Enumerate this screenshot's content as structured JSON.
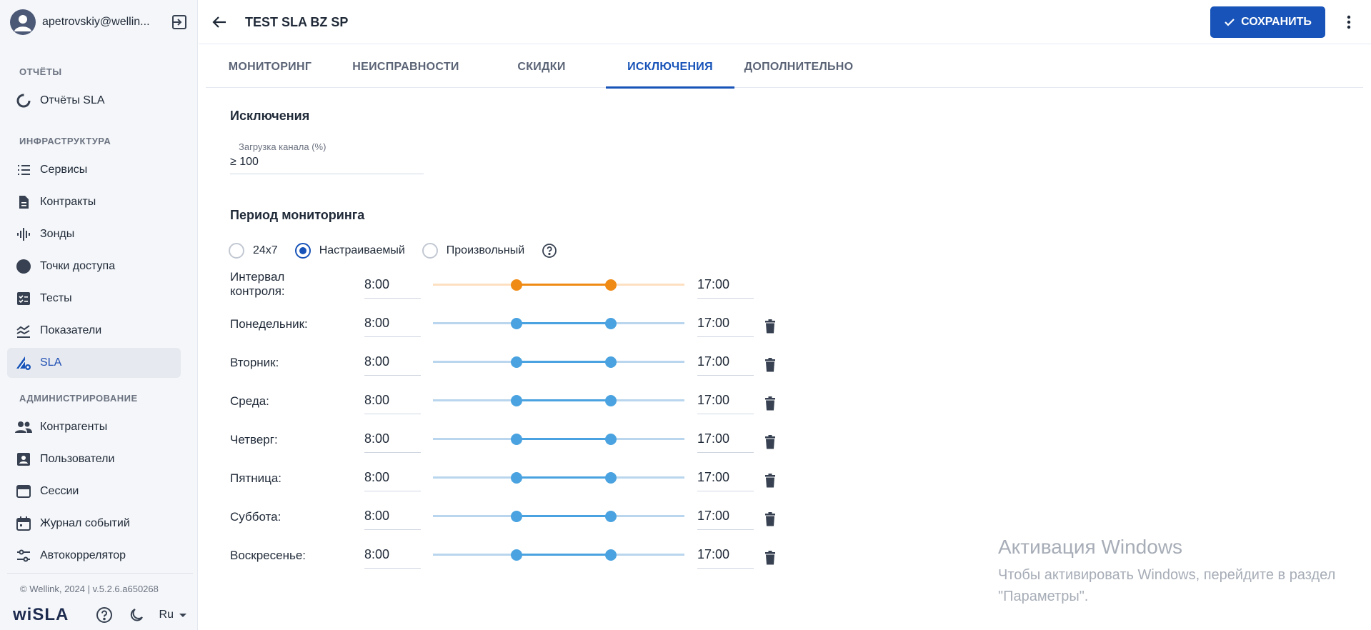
{
  "sidebar": {
    "user": "apetrovskiy@wellin...",
    "sections": [
      {
        "title": "ОТЧЁТЫ",
        "items": [
          {
            "label": "Отчёты SLA",
            "icon": "donut-icon"
          }
        ]
      },
      {
        "title": "ИНФРАСТРУКТУРА",
        "items": [
          {
            "label": "Сервисы",
            "icon": "list-icon"
          },
          {
            "label": "Контракты",
            "icon": "document-icon"
          },
          {
            "label": "Зонды",
            "icon": "waveform-icon"
          },
          {
            "label": "Точки доступа",
            "icon": "circle-icon"
          },
          {
            "label": "Тесты",
            "icon": "checklist-icon"
          },
          {
            "label": "Показатели",
            "icon": "chart-lines-icon"
          },
          {
            "label": "SLA",
            "icon": "sla-gear-icon",
            "active": true
          }
        ]
      },
      {
        "title": "АДМИНИСТРИРОВАНИЕ",
        "items": [
          {
            "label": "Контрагенты",
            "icon": "people-icon"
          },
          {
            "label": "Пользователи",
            "icon": "user-card-icon"
          },
          {
            "label": "Сессии",
            "icon": "window-icon"
          },
          {
            "label": "Журнал событий",
            "icon": "calendar-icon"
          },
          {
            "label": "Автокоррелятор",
            "icon": "sliders-icon"
          }
        ]
      }
    ],
    "copyright": "© Wellink, 2024 | v.5.2.6.a650268",
    "logo": "wiSLA",
    "lang": "Ru"
  },
  "header": {
    "title": "TEST SLA BZ SP",
    "save_label": "СОХРАНИТЬ"
  },
  "tabs": [
    {
      "label": "МОНИТОРИНГ",
      "active": false
    },
    {
      "label": "НЕИСПРАВНОСТИ",
      "active": false
    },
    {
      "label": "СКИДКИ",
      "active": false
    },
    {
      "label": "ИСКЛЮЧЕНИЯ",
      "active": true
    },
    {
      "label": "ДОПОЛНИТЕЛЬНО",
      "active": false
    }
  ],
  "exceptions": {
    "heading": "Исключения",
    "field_label": "Загрузка канала (%)",
    "field_value": "≥ 100"
  },
  "period": {
    "heading": "Период мониторинга",
    "options": [
      {
        "label": "24x7",
        "selected": false
      },
      {
        "label": "Настраиваемый",
        "selected": true
      },
      {
        "label": "Произвольный",
        "selected": false
      }
    ]
  },
  "schedule": [
    {
      "day": "Интервал контроля:",
      "from": "8:00",
      "to": "17:00",
      "kind": "interval",
      "range_start": 0.333,
      "range_end": 0.708
    },
    {
      "day": "Понедельник:",
      "from": "8:00",
      "to": "17:00",
      "kind": "day",
      "range_start": 0.333,
      "range_end": 0.708
    },
    {
      "day": "Вторник:",
      "from": "8:00",
      "to": "17:00",
      "kind": "day",
      "range_start": 0.333,
      "range_end": 0.708
    },
    {
      "day": "Среда:",
      "from": "8:00",
      "to": "17:00",
      "kind": "day",
      "range_start": 0.333,
      "range_end": 0.708
    },
    {
      "day": "Четверг:",
      "from": "8:00",
      "to": "17:00",
      "kind": "day",
      "range_start": 0.333,
      "range_end": 0.708
    },
    {
      "day": "Пятница:",
      "from": "8:00",
      "to": "17:00",
      "kind": "day",
      "range_start": 0.333,
      "range_end": 0.708
    },
    {
      "day": "Суббота:",
      "from": "8:00",
      "to": "17:00",
      "kind": "day",
      "range_start": 0.333,
      "range_end": 0.708
    },
    {
      "day": "Воскресенье:",
      "from": "8:00",
      "to": "17:00",
      "kind": "day",
      "range_start": 0.333,
      "range_end": 0.708
    }
  ],
  "watermark": {
    "title": "Активация Windows",
    "subtitle": "Чтобы активировать Windows, перейдите в раздел \"Параметры\"."
  },
  "colors": {
    "accent": "#1753b8",
    "slider_blue": "#4aa3e0",
    "slider_orange": "#ef8a14"
  }
}
